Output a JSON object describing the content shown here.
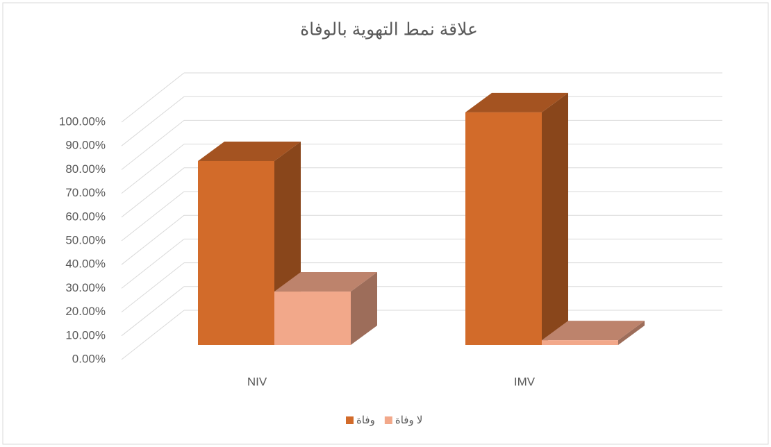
{
  "chart_data": {
    "type": "bar3d",
    "title": "علاقة نمط التهوية بالوفاة",
    "categories": [
      "NIV",
      "IMV"
    ],
    "series": [
      {
        "name": "وفاة",
        "color": "#d26b2a",
        "values": [
          77.5,
          98
        ]
      },
      {
        "name": "لا وفاة",
        "color": "#f2a88a",
        "values": [
          22.5,
          2
        ]
      }
    ],
    "ylim": [
      0,
      100
    ],
    "yticks": [
      {
        "value": 0,
        "label": "0.00%"
      },
      {
        "value": 10,
        "label": "10.00%"
      },
      {
        "value": 20,
        "label": "20.00%"
      },
      {
        "value": 30,
        "label": "30.00%"
      },
      {
        "value": 40,
        "label": "40.00%"
      },
      {
        "value": 50,
        "label": "50.00%"
      },
      {
        "value": 60,
        "label": "60.00%"
      },
      {
        "value": 70,
        "label": "70.00%"
      },
      {
        "value": 80,
        "label": "80.00%"
      },
      {
        "value": 90,
        "label": "90.00%"
      },
      {
        "value": 100,
        "label": "100.00%"
      }
    ],
    "grid": true,
    "legend": "bottom"
  }
}
